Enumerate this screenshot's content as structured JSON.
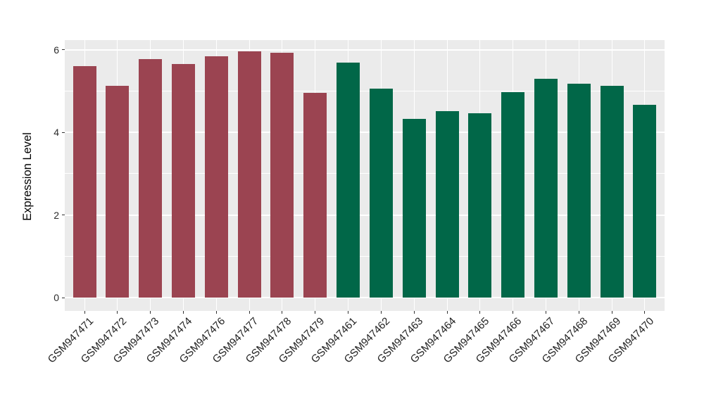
{
  "chart_data": {
    "type": "bar",
    "title": "",
    "xlabel": "",
    "ylabel": "Expression Level",
    "categories": [
      "GSM947471",
      "GSM947472",
      "GSM947473",
      "GSM947474",
      "GSM947476",
      "GSM947477",
      "GSM947478",
      "GSM947479",
      "GSM947461",
      "GSM947462",
      "GSM947463",
      "GSM947464",
      "GSM947465",
      "GSM947466",
      "GSM947467",
      "GSM947468",
      "GSM947469",
      "GSM947470"
    ],
    "values": [
      5.6,
      5.12,
      5.77,
      5.66,
      5.84,
      5.95,
      5.92,
      4.95,
      5.68,
      5.05,
      4.32,
      4.51,
      4.46,
      4.97,
      5.29,
      5.17,
      5.13,
      4.67
    ],
    "bar_groups": [
      "group1",
      "group1",
      "group1",
      "group1",
      "group1",
      "group1",
      "group1",
      "group1",
      "group2",
      "group2",
      "group2",
      "group2",
      "group2",
      "group2",
      "group2",
      "group2",
      "group2",
      "group2"
    ],
    "colors": {
      "group1": "#9B4451",
      "group2": "#016748"
    },
    "panel_background": "#EBEBEB",
    "grid_color": "#FFFFFF",
    "tick_color": "#333333",
    "ylim": [
      -0.32,
      6.23
    ],
    "yticks": [
      0,
      2,
      4,
      6
    ],
    "yticks_minor": [
      1,
      3,
      5
    ],
    "grid": "on",
    "legend": "none",
    "bar_width_fraction": 0.7,
    "x_label_angle_deg": 45
  }
}
